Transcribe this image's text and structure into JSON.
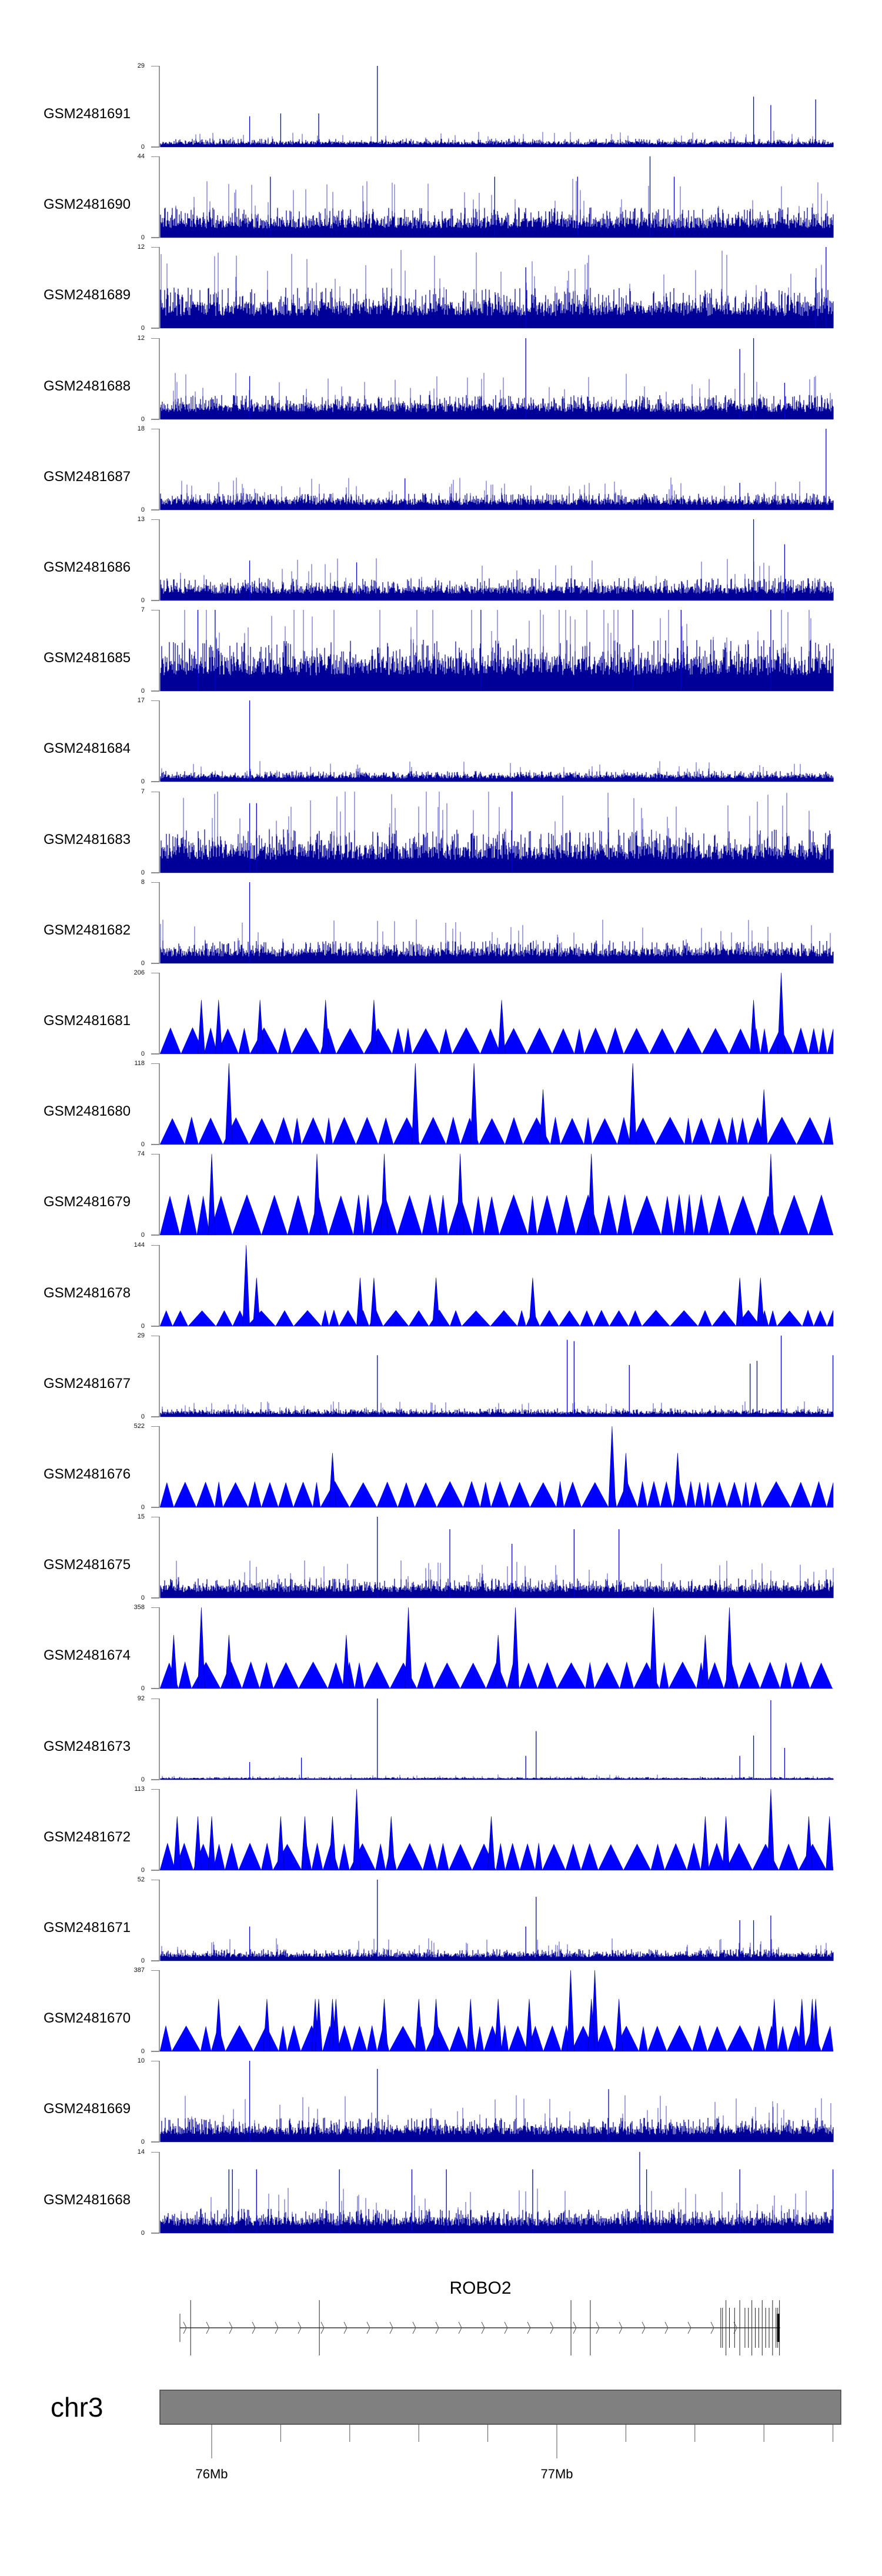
{
  "zero_label": "0",
  "gene": {
    "name": "ROBO2",
    "strand": "+",
    "start_mb": 75.908,
    "end_mb": 77.647,
    "exons_mb": [
      75.939,
      76.312,
      77.041,
      77.097,
      77.475,
      77.48,
      77.49,
      77.5,
      77.515,
      77.53,
      77.545,
      77.555,
      77.565,
      77.575,
      77.585,
      77.595,
      77.605,
      77.615,
      77.625,
      77.635,
      77.64,
      77.645
    ]
  },
  "chromosome": {
    "label": "chr3",
    "color": "#808080"
  },
  "chart_data": {
    "type": "area",
    "xlabel": "genomic position",
    "xlim": [
      75.85,
      77.8
    ],
    "x_ticks_mb": [
      76.0,
      76.2,
      76.4,
      76.6,
      76.8,
      77.0,
      77.2,
      77.4,
      77.6,
      77.8
    ],
    "x_tick_labels": [
      {
        "mb": 76.0,
        "label": "76Mb"
      },
      {
        "mb": 77.0,
        "label": "77Mb"
      }
    ],
    "colors": {
      "bars": "#000099",
      "bars_light": "#4a4acc",
      "triangles": "#0000ff"
    },
    "tracks": [
      {
        "name": "GSM2481691",
        "ymax": 29,
        "style": "bars",
        "baseline": 2,
        "peaks": [
          [
            76.48,
            29
          ],
          [
            77.57,
            18
          ],
          [
            77.62,
            15
          ],
          [
            77.75,
            17
          ],
          [
            76.11,
            11
          ],
          [
            76.2,
            12
          ],
          [
            76.31,
            12
          ]
        ]
      },
      {
        "name": "GSM2481690",
        "ymax": 44,
        "style": "bars",
        "baseline": 11,
        "peaks": [
          [
            77.27,
            44
          ],
          [
            77.06,
            33
          ],
          [
            77.34,
            33
          ],
          [
            76.17,
            33
          ],
          [
            76.82,
            33
          ]
        ]
      },
      {
        "name": "GSM2481689",
        "ymax": 12,
        "style": "bars",
        "baseline": 4,
        "peaks": [
          [
            77.78,
            12
          ],
          [
            76.91,
            9
          ],
          [
            77.75,
            7.5
          ]
        ]
      },
      {
        "name": "GSM2481688",
        "ymax": 12,
        "style": "bars",
        "baseline": 2.4,
        "peaks": [
          [
            76.91,
            12
          ],
          [
            77.57,
            12
          ],
          [
            77.53,
            10.4
          ],
          [
            76.11,
            6.4
          ],
          [
            77.66,
            5.4
          ]
        ]
      },
      {
        "name": "GSM2481687",
        "ymax": 18,
        "style": "bars",
        "baseline": 2.5,
        "peaks": [
          [
            77.78,
            18
          ],
          [
            76.56,
            7
          ],
          [
            77.53,
            6
          ]
        ]
      },
      {
        "name": "GSM2481686",
        "ymax": 13,
        "style": "bars",
        "baseline": 2.4,
        "peaks": [
          [
            77.57,
            13
          ],
          [
            77.66,
            9
          ],
          [
            76.11,
            6.4
          ],
          [
            76.42,
            6.1
          ]
        ]
      },
      {
        "name": "GSM2481685",
        "ymax": 7,
        "style": "bars",
        "baseline": 3,
        "peaks": [
          [
            75.96,
            7
          ],
          [
            76.01,
            7
          ],
          [
            76.78,
            7
          ],
          [
            77.22,
            7
          ],
          [
            77.36,
            7
          ],
          [
            77.62,
            7
          ]
        ]
      },
      {
        "name": "GSM2481684",
        "ymax": 17,
        "style": "bars",
        "baseline": 1.5,
        "peaks": [
          [
            76.11,
            17
          ]
        ]
      },
      {
        "name": "GSM2481683",
        "ymax": 7,
        "style": "bars",
        "baseline": 2.5,
        "peaks": [
          [
            76.87,
            7
          ],
          [
            76.11,
            6
          ],
          [
            76.13,
            6
          ]
        ]
      },
      {
        "name": "GSM2481682",
        "ymax": 8,
        "style": "bars",
        "baseline": 1.5,
        "peaks": [
          [
            76.11,
            8
          ]
        ]
      },
      {
        "name": "GSM2481681",
        "ymax": 206,
        "style": "triangles",
        "baseline": 67,
        "peaks": [
          [
            77.65,
            206
          ],
          [
            75.97,
            137
          ],
          [
            76.02,
            137
          ],
          [
            76.14,
            137
          ],
          [
            76.33,
            137
          ],
          [
            76.47,
            137
          ],
          [
            76.84,
            137
          ],
          [
            77.57,
            137
          ]
        ]
      },
      {
        "name": "GSM2481680",
        "ymax": 118,
        "style": "triangles",
        "baseline": 40,
        "peaks": [
          [
            76.05,
            118
          ],
          [
            76.59,
            118
          ],
          [
            76.76,
            118
          ],
          [
            77.22,
            118
          ],
          [
            77.6,
            80
          ],
          [
            76.96,
            80
          ]
        ]
      },
      {
        "name": "GSM2481679",
        "ymax": 74,
        "style": "triangles",
        "baseline": 37,
        "peaks": [
          [
            76.0,
            74
          ],
          [
            76.305,
            74
          ],
          [
            76.5,
            74
          ],
          [
            76.72,
            74
          ],
          [
            77.1,
            74
          ],
          [
            77.62,
            74
          ]
        ]
      },
      {
        "name": "GSM2481678",
        "ymax": 144,
        "style": "triangles",
        "baseline": 29,
        "peaks": [
          [
            76.1,
            144
          ],
          [
            76.13,
            86
          ],
          [
            76.43,
            86
          ],
          [
            76.47,
            86
          ],
          [
            76.65,
            86
          ],
          [
            76.93,
            86
          ],
          [
            77.53,
            86
          ],
          [
            77.59,
            86
          ]
        ]
      },
      {
        "name": "GSM2481677",
        "ymax": 29,
        "style": "bars",
        "baseline": 2,
        "peaks": [
          [
            77.03,
            27.5
          ],
          [
            77.05,
            27
          ],
          [
            77.65,
            29
          ],
          [
            76.48,
            22
          ],
          [
            77.8,
            22
          ],
          [
            77.21,
            18.5
          ],
          [
            77.58,
            20
          ],
          [
            77.56,
            19
          ]
        ]
      },
      {
        "name": "GSM2481676",
        "ymax": 522,
        "style": "triangles",
        "baseline": 168,
        "peaks": [
          [
            77.16,
            522
          ],
          [
            77.2,
            350
          ],
          [
            77.35,
            350
          ],
          [
            76.35,
            350
          ]
        ]
      },
      {
        "name": "GSM2481675",
        "ymax": 15,
        "style": "bars",
        "baseline": 2.4,
        "peaks": [
          [
            76.48,
            15
          ],
          [
            76.69,
            12.7
          ],
          [
            77.05,
            12.7
          ],
          [
            77.18,
            12.7
          ],
          [
            76.87,
            10
          ]
        ]
      },
      {
        "name": "GSM2481674",
        "ymax": 358,
        "style": "triangles",
        "baseline": 118,
        "peaks": [
          [
            76.57,
            358
          ],
          [
            76.88,
            358
          ],
          [
            77.28,
            358
          ],
          [
            77.5,
            358
          ],
          [
            75.97,
            358
          ],
          [
            77.43,
            236
          ],
          [
            76.83,
            236
          ],
          [
            76.39,
            236
          ],
          [
            75.89,
            236
          ],
          [
            76.05,
            236
          ]
        ]
      },
      {
        "name": "GSM2481673",
        "ymax": 92,
        "style": "bars",
        "baseline": 2,
        "peaks": [
          [
            76.48,
            92
          ],
          [
            77.62,
            90
          ],
          [
            76.94,
            55
          ],
          [
            77.57,
            50
          ],
          [
            77.66,
            36
          ],
          [
            76.91,
            27
          ],
          [
            77.53,
            27
          ],
          [
            76.11,
            20
          ],
          [
            76.26,
            25
          ]
        ]
      },
      {
        "name": "GSM2481672",
        "ymax": 113,
        "style": "triangles",
        "baseline": 38,
        "peaks": [
          [
            76.42,
            113
          ],
          [
            77.62,
            113
          ],
          [
            76.81,
            75
          ],
          [
            75.9,
            75
          ],
          [
            75.96,
            75
          ],
          [
            76.0,
            75
          ],
          [
            76.2,
            75
          ],
          [
            76.27,
            75
          ],
          [
            76.35,
            75
          ],
          [
            76.52,
            75
          ],
          [
            77.43,
            75
          ],
          [
            77.49,
            75
          ],
          [
            77.73,
            75
          ],
          [
            77.79,
            75
          ]
        ]
      },
      {
        "name": "GSM2481671",
        "ymax": 52,
        "style": "bars",
        "baseline": 5,
        "peaks": [
          [
            76.48,
            52
          ],
          [
            76.94,
            41
          ],
          [
            77.62,
            29
          ],
          [
            76.11,
            22
          ],
          [
            76.91,
            22
          ],
          [
            77.53,
            26
          ],
          [
            77.57,
            26
          ]
        ]
      },
      {
        "name": "GSM2481670",
        "ymax": 387,
        "style": "triangles",
        "baseline": 125,
        "peaks": [
          [
            77.04,
            387
          ],
          [
            77.11,
            387
          ],
          [
            76.02,
            250
          ],
          [
            76.16,
            250
          ],
          [
            76.3,
            250
          ],
          [
            76.31,
            250
          ],
          [
            76.35,
            250
          ],
          [
            76.36,
            250
          ],
          [
            76.5,
            250
          ],
          [
            76.6,
            250
          ],
          [
            76.65,
            250
          ],
          [
            76.75,
            250
          ],
          [
            76.83,
            250
          ],
          [
            76.92,
            250
          ],
          [
            77.1,
            250
          ],
          [
            77.18,
            250
          ],
          [
            77.63,
            250
          ],
          [
            77.71,
            250
          ],
          [
            77.74,
            250
          ],
          [
            77.75,
            250
          ]
        ]
      },
      {
        "name": "GSM2481669",
        "ymax": 10,
        "style": "bars",
        "baseline": 2,
        "peaks": [
          [
            76.11,
            10
          ],
          [
            76.48,
            9
          ],
          [
            77.15,
            6.5
          ]
        ]
      },
      {
        "name": "GSM2481668",
        "ymax": 14,
        "style": "bars",
        "baseline": 2.8,
        "peaks": [
          [
            77.24,
            14
          ],
          [
            76.05,
            11
          ],
          [
            76.06,
            11
          ],
          [
            76.13,
            11
          ],
          [
            76.37,
            11
          ],
          [
            76.58,
            11
          ],
          [
            76.68,
            11
          ],
          [
            76.93,
            11
          ],
          [
            77.26,
            11
          ],
          [
            77.53,
            11
          ],
          [
            77.8,
            11
          ]
        ]
      }
    ]
  }
}
